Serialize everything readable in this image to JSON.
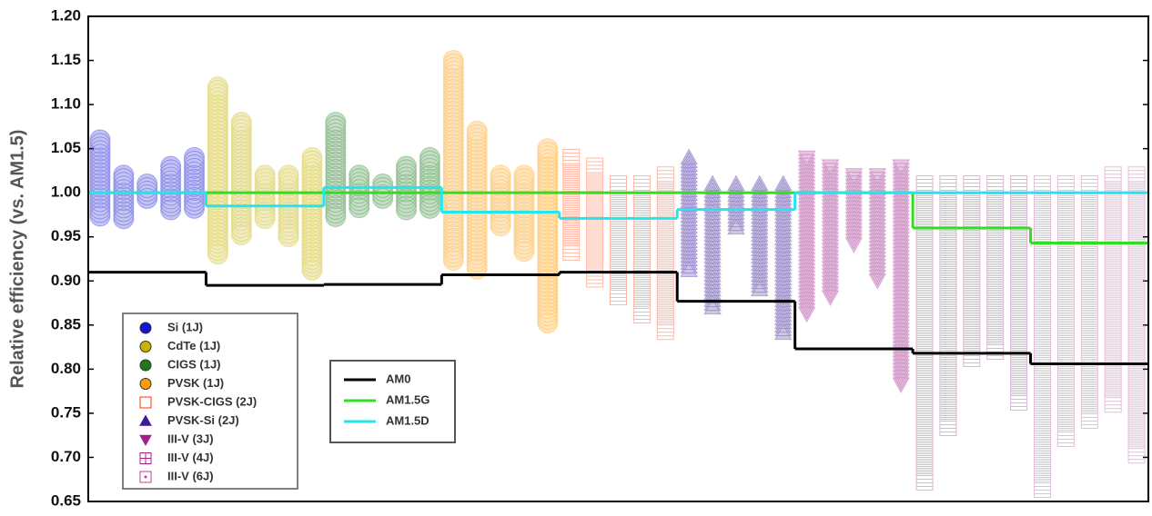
{
  "chart_data": {
    "type": "column-scatter",
    "y_label": "Relative efficiency (vs. AM1.5)",
    "ylim": [
      0.65,
      1.2
    ],
    "yticks": [
      {
        "value": 0.65,
        "label": "0.65"
      },
      {
        "value": 0.7,
        "label": "0.70"
      },
      {
        "value": 0.75,
        "label": "0.75"
      },
      {
        "value": 0.8,
        "label": "0.80"
      },
      {
        "value": 0.85,
        "label": "0.85"
      },
      {
        "value": 0.9,
        "label": "0.90"
      },
      {
        "value": 0.95,
        "label": "0.95"
      },
      {
        "value": 1.0,
        "label": "1.00"
      },
      {
        "value": 1.05,
        "label": "1.05"
      },
      {
        "value": 1.1,
        "label": "1.10"
      },
      {
        "value": 1.15,
        "label": "1.15"
      },
      {
        "value": 1.2,
        "label": "1.20"
      }
    ],
    "series": [
      {
        "name": "Si (1J)",
        "color": "#1414d2",
        "marker": "circle",
        "ranges": [
          [
            0.97,
            1.06
          ],
          [
            0.97,
            1.02
          ],
          [
            0.99,
            1.01
          ],
          [
            0.98,
            1.03
          ],
          [
            0.98,
            1.04
          ]
        ]
      },
      {
        "name": "CdTe (1J)",
        "color": "#c8b400",
        "marker": "circle",
        "ranges": [
          [
            0.93,
            1.12
          ],
          [
            0.95,
            1.08
          ],
          [
            0.97,
            1.02
          ],
          [
            0.95,
            1.02
          ],
          [
            0.91,
            1.04
          ]
        ]
      },
      {
        "name": "CIGS (1J)",
        "color": "#1a7a1a",
        "marker": "circle",
        "ranges": [
          [
            0.97,
            1.08
          ],
          [
            0.98,
            1.02
          ],
          [
            0.99,
            1.01
          ],
          [
            0.98,
            1.03
          ],
          [
            0.98,
            1.04
          ]
        ]
      },
      {
        "name": "PVSK (1J)",
        "color": "#ff9a00",
        "marker": "circle",
        "ranges": [
          [
            0.92,
            1.15
          ],
          [
            0.91,
            1.07
          ],
          [
            0.96,
            1.02
          ],
          [
            0.93,
            1.02
          ],
          [
            0.85,
            1.05
          ]
        ]
      },
      {
        "name": "PVSK-CIGS (2J)",
        "color": "#ff3300",
        "marker": "square",
        "ranges": [
          [
            0.93,
            1.04
          ],
          [
            0.9,
            1.03
          ],
          [
            0.88,
            1.01
          ],
          [
            0.86,
            1.01
          ],
          [
            0.84,
            1.02
          ]
        ]
      },
      {
        "name": "PVSK-Si (2J)",
        "color": "#3a1a9a",
        "marker": "triangle",
        "ranges": [
          [
            0.91,
            1.04
          ],
          [
            0.87,
            1.01
          ],
          [
            0.96,
            1.01
          ],
          [
            0.89,
            1.01
          ],
          [
            0.84,
            1.01
          ]
        ]
      },
      {
        "name": "III-V (3J)",
        "color": "#a0208a",
        "marker": "triangle-down",
        "ranges": [
          [
            0.86,
            1.04
          ],
          [
            0.88,
            1.03
          ],
          [
            0.94,
            1.02
          ],
          [
            0.9,
            1.02
          ],
          [
            0.78,
            1.03
          ]
        ]
      },
      {
        "name": "III-V (4J)",
        "color": "#b0208a",
        "marker": "square-plus",
        "ranges": [
          [
            0.67,
            1.01
          ],
          [
            0.73,
            1.01
          ],
          [
            0.81,
            1.01
          ],
          [
            0.82,
            1.01
          ],
          [
            0.76,
            1.01
          ]
        ]
      },
      {
        "name": "III-V (6J)",
        "color": "#c0409a",
        "marker": "square-dot",
        "ranges": [
          [
            0.66,
            1.01
          ],
          [
            0.72,
            1.01
          ],
          [
            0.74,
            1.01
          ],
          [
            0.76,
            1.02
          ],
          [
            0.7,
            1.02
          ]
        ]
      }
    ],
    "lines": [
      {
        "name": "AM0",
        "color": "#000000",
        "values": [
          0.91,
          0.895,
          0.896,
          0.907,
          0.91,
          0.877,
          0.823,
          0.818,
          0.806
        ]
      },
      {
        "name": "AM1.5G",
        "color": "#33dd22",
        "values": [
          1.0,
          1.0,
          1.0,
          1.0,
          1.0,
          1.0,
          1.0,
          0.96,
          0.943
        ]
      },
      {
        "name": "AM1.5D",
        "color": "#22e5f0",
        "values": [
          1.0,
          0.985,
          1.006,
          0.978,
          0.971,
          0.981,
          1.0,
          1.0,
          1.0
        ]
      }
    ]
  }
}
